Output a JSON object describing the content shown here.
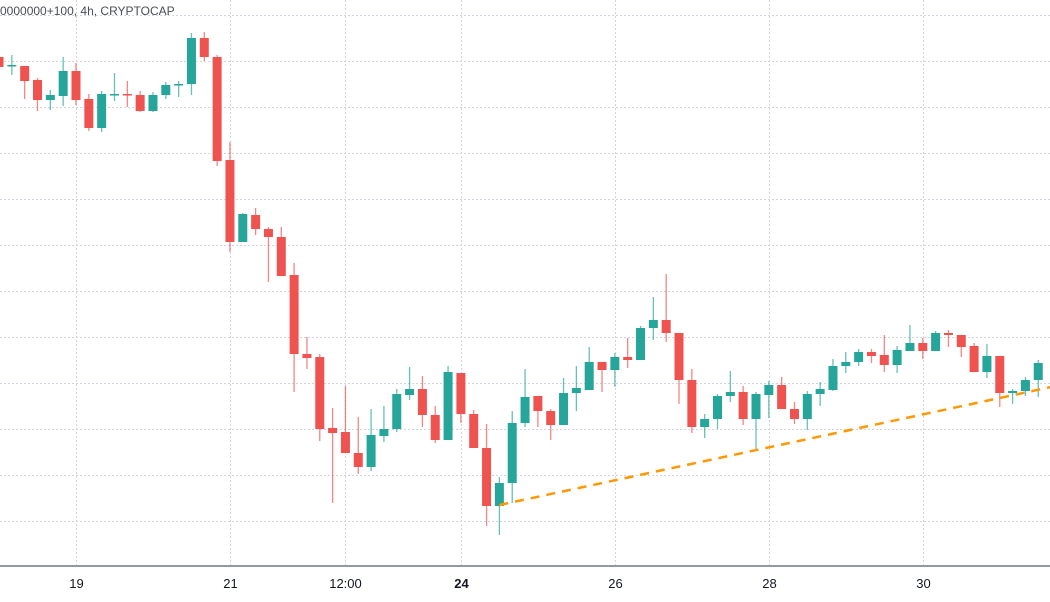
{
  "header": {
    "legend": "0000000+100, 4h, CRYPTOCAP"
  },
  "colors": {
    "up": "#26a69a",
    "down": "#ef5350",
    "trendline": "#ff9800",
    "grid": "#d1d4dc"
  },
  "chart_data": {
    "type": "candlestick",
    "title": "",
    "interval": "4h",
    "grid": true,
    "ylim": [
      2,
      567
    ],
    "y_gridlines": [
      46,
      92,
      138,
      184,
      230,
      276,
      322,
      368,
      414,
      460,
      506,
      552
    ],
    "x_ticks": [
      {
        "label": "19",
        "bar": 0,
        "bold": false
      },
      {
        "label": "21",
        "bar": 12,
        "bold": false
      },
      {
        "label": "12:00",
        "bar": 21,
        "bold": false
      },
      {
        "label": "24",
        "bar": 30,
        "bold": true
      },
      {
        "label": "26",
        "bar": 42,
        "bold": false
      },
      {
        "label": "28",
        "bar": 54,
        "bold": false
      },
      {
        "label": "30",
        "bar": 66,
        "bold": false
      }
    ],
    "first_bar": -6,
    "ohlc": [
      [
        510,
        510,
        500,
        500
      ],
      [
        501,
        512,
        492,
        502
      ],
      [
        501,
        501,
        468,
        486
      ],
      [
        487,
        489,
        456,
        467
      ],
      [
        467,
        477,
        457,
        472
      ],
      [
        471,
        510,
        461,
        496
      ],
      [
        496,
        504,
        462,
        467
      ],
      [
        468,
        473,
        436,
        439
      ],
      [
        439,
        476,
        435,
        473
      ],
      [
        472,
        494,
        466,
        473
      ],
      [
        473,
        486,
        460,
        472
      ],
      [
        472,
        476,
        455,
        456
      ],
      [
        456,
        475,
        455,
        472
      ],
      [
        472,
        485,
        468,
        482
      ],
      [
        482,
        486,
        470,
        483
      ],
      [
        483,
        534,
        472,
        529
      ],
      [
        529,
        535,
        506,
        510
      ],
      [
        510,
        512,
        401,
        406
      ],
      [
        407,
        425,
        315,
        325
      ],
      [
        325,
        354,
        325,
        353
      ],
      [
        352,
        359,
        332,
        338
      ],
      [
        338,
        340,
        285,
        330
      ],
      [
        330,
        340,
        291,
        291
      ],
      [
        292,
        304,
        175,
        213
      ],
      [
        213,
        230,
        198,
        209
      ],
      [
        210,
        213,
        126,
        138
      ],
      [
        139,
        159,
        64,
        134
      ],
      [
        135,
        181,
        114,
        114
      ],
      [
        114,
        150,
        93,
        100
      ],
      [
        100,
        158,
        96,
        132
      ],
      [
        131,
        161,
        125,
        138
      ],
      [
        138,
        178,
        135,
        173
      ],
      [
        172,
        200,
        167,
        178
      ],
      [
        178,
        191,
        140,
        152
      ],
      [
        152,
        161,
        124,
        127
      ],
      [
        127,
        201,
        127,
        195
      ],
      [
        194,
        194,
        144,
        153
      ],
      [
        153,
        157,
        119,
        119
      ],
      [
        119,
        143,
        41,
        61
      ],
      [
        61,
        90,
        32,
        84
      ],
      [
        84,
        156,
        64,
        144
      ],
      [
        144,
        198,
        140,
        170
      ],
      [
        171,
        171,
        140,
        156
      ],
      [
        156,
        158,
        127,
        142
      ],
      [
        142,
        189,
        142,
        174
      ],
      [
        174,
        201,
        156,
        179
      ],
      [
        177,
        220,
        177,
        205
      ],
      [
        205,
        205,
        175,
        197
      ],
      [
        197,
        214,
        180,
        210
      ],
      [
        210,
        229,
        199,
        207
      ],
      [
        207,
        241,
        207,
        239
      ],
      [
        239,
        270,
        227,
        247
      ],
      [
        247,
        293,
        225,
        234
      ],
      [
        234,
        234,
        163,
        187
      ],
      [
        187,
        198,
        134,
        140
      ],
      [
        140,
        153,
        129,
        148
      ],
      [
        148,
        173,
        138,
        171
      ],
      [
        171,
        196,
        165,
        175
      ],
      [
        175,
        181,
        142,
        148
      ],
      [
        148,
        175,
        116,
        173
      ],
      [
        172,
        186,
        149,
        182
      ],
      [
        182,
        190,
        158,
        158
      ],
      [
        158,
        165,
        143,
        148
      ],
      [
        148,
        176,
        137,
        173
      ],
      [
        173,
        185,
        161,
        178
      ],
      [
        177,
        208,
        176,
        201
      ],
      [
        201,
        215,
        194,
        205
      ],
      [
        205,
        218,
        201,
        215
      ],
      [
        215,
        218,
        204,
        211
      ],
      [
        212,
        232,
        195,
        202
      ],
      [
        202,
        221,
        194,
        217
      ],
      [
        216,
        242,
        216,
        224
      ],
      [
        224,
        229,
        208,
        216
      ],
      [
        216,
        236,
        216,
        234
      ],
      [
        234,
        237,
        220,
        232
      ],
      [
        232,
        232,
        210,
        220
      ],
      [
        221,
        224,
        195,
        195
      ],
      [
        195,
        223,
        189,
        211
      ],
      [
        211,
        211,
        160,
        174
      ],
      [
        174,
        178,
        163,
        176
      ],
      [
        176,
        190,
        171,
        187
      ],
      [
        187,
        207,
        170,
        204
      ]
    ],
    "trendline": {
      "style": "dashed",
      "from": {
        "bar": 33,
        "value": 62
      },
      "to": {
        "bar": 76,
        "value": 180
      }
    }
  }
}
